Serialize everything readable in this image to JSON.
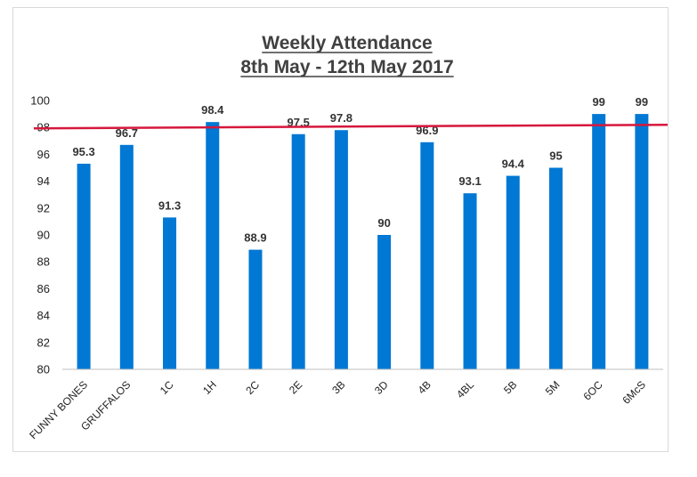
{
  "chart_data": {
    "type": "bar",
    "title": "Weekly Attendance",
    "subtitle": "8th May - 12th May 2017",
    "categories": [
      "FUNNY BONES",
      "GRUFFALOS",
      "1C",
      "1H",
      "2C",
      "2E",
      "3B",
      "3D",
      "4B",
      "4BL",
      "5B",
      "5M",
      "6OC",
      "6McS"
    ],
    "values": [
      95.3,
      96.7,
      91.3,
      98.4,
      88.9,
      97.5,
      97.8,
      90,
      96.9,
      93.1,
      94.4,
      95,
      99,
      99
    ],
    "ylim": [
      80,
      100
    ],
    "yticks": [
      80,
      82,
      84,
      86,
      88,
      90,
      92,
      94,
      96,
      98,
      100
    ],
    "target_line": 98,
    "grid": false,
    "legend": "none",
    "colors": {
      "bar": "#0078d4",
      "target_line": "#d6183c",
      "axis": "#bfbfbf"
    }
  }
}
